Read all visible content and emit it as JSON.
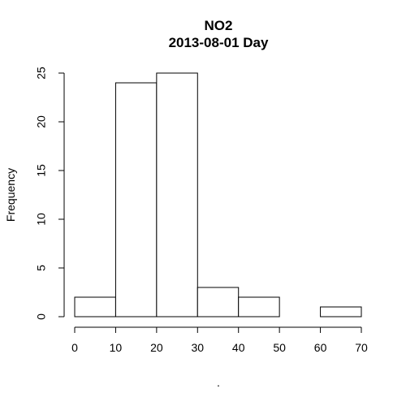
{
  "chart_data": {
    "type": "bar",
    "title": "NO2",
    "subtitle": "2013-08-01 Day",
    "xlabel": ".",
    "ylabel": "Frequency",
    "bins": [
      {
        "from": 0,
        "to": 10,
        "value": 2
      },
      {
        "from": 10,
        "to": 20,
        "value": 24
      },
      {
        "from": 20,
        "to": 30,
        "value": 25
      },
      {
        "from": 30,
        "to": 40,
        "value": 3
      },
      {
        "from": 40,
        "to": 50,
        "value": 2
      },
      {
        "from": 50,
        "to": 60,
        "value": 0
      },
      {
        "from": 60,
        "to": 70,
        "value": 1
      }
    ],
    "xlim": [
      0,
      70
    ],
    "ylim": [
      0,
      25
    ],
    "x_ticks": [
      0,
      10,
      20,
      30,
      40,
      50,
      60,
      70
    ],
    "x_tick_labels": [
      "0",
      "10",
      "20",
      "30",
      "40",
      "50",
      "60",
      "70"
    ],
    "y_ticks": [
      0,
      5,
      10,
      15,
      20,
      25
    ],
    "y_tick_labels": [
      "0",
      "5",
      "10",
      "15",
      "20",
      "25"
    ],
    "grid": false,
    "bar_fill": "#ffffff",
    "bar_stroke": "#000000"
  }
}
